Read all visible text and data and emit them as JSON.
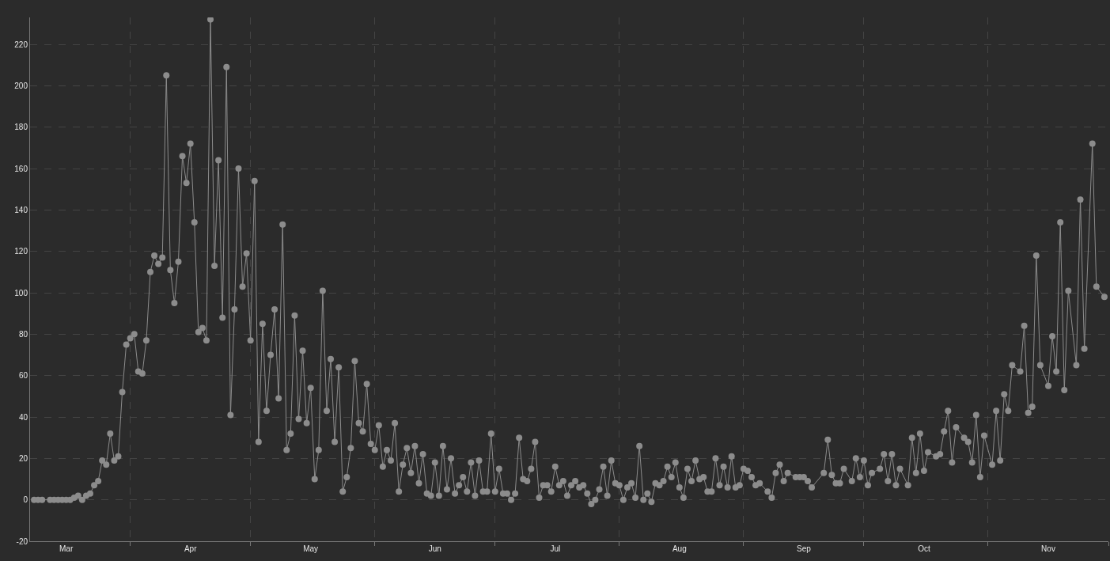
{
  "chart_data": {
    "type": "line",
    "x": [
      "--03-08",
      "--03-09",
      "--03-10",
      "--03-12",
      "--03-13",
      "--03-14",
      "--03-15",
      "--03-16",
      "--03-17",
      "--03-18",
      "--03-19",
      "--03-20",
      "--03-21",
      "--03-22",
      "--03-23",
      "--03-24",
      "--03-25",
      "--03-26",
      "--03-27",
      "--03-28",
      "--03-29",
      "--03-30",
      "--03-31",
      "--04-01",
      "--04-02",
      "--04-03",
      "--04-04",
      "--04-05",
      "--04-06",
      "--04-07",
      "--04-08",
      "--04-09",
      "--04-10",
      "--04-11",
      "--04-12",
      "--04-13",
      "--04-14",
      "--04-15",
      "--04-16",
      "--04-17",
      "--04-18",
      "--04-19",
      "--04-20",
      "--04-21",
      "--04-22",
      "--04-23",
      "--04-24",
      "--04-25",
      "--04-26",
      "--04-27",
      "--04-28",
      "--04-29",
      "--04-30",
      "--05-01",
      "--05-02",
      "--05-03",
      "--05-04",
      "--05-05",
      "--05-06",
      "--05-07",
      "--05-08",
      "--05-09",
      "--05-10",
      "--05-11",
      "--05-12",
      "--05-13",
      "--05-14",
      "--05-15",
      "--05-16",
      "--05-17",
      "--05-18",
      "--05-19",
      "--05-20",
      "--05-21",
      "--05-22",
      "--05-23",
      "--05-24",
      "--05-25",
      "--05-26",
      "--05-27",
      "--05-28",
      "--05-29",
      "--05-30",
      "--05-31",
      "--06-01",
      "--06-02",
      "--06-03",
      "--06-04",
      "--06-05",
      "--06-06",
      "--06-07",
      "--06-08",
      "--06-09",
      "--06-10",
      "--06-11",
      "--06-12",
      "--06-13",
      "--06-14",
      "--06-15",
      "--06-16",
      "--06-17",
      "--06-18",
      "--06-19",
      "--06-20",
      "--06-21",
      "--06-22",
      "--06-23",
      "--06-24",
      "--06-25",
      "--06-26",
      "--06-27",
      "--06-28",
      "--06-29",
      "--06-30",
      "--07-01",
      "--07-02",
      "--07-03",
      "--07-04",
      "--07-05",
      "--07-06",
      "--07-07",
      "--07-08",
      "--07-09",
      "--07-10",
      "--07-11",
      "--07-12",
      "--07-13",
      "--07-14",
      "--07-15",
      "--07-16",
      "--07-17",
      "--07-18",
      "--07-19",
      "--07-20",
      "--07-21",
      "--07-22",
      "--07-23",
      "--07-24",
      "--07-25",
      "--07-26",
      "--07-27",
      "--07-28",
      "--07-29",
      "--07-30",
      "--07-31",
      "--08-01",
      "--08-02",
      "--08-03",
      "--08-04",
      "--08-05",
      "--08-06",
      "--08-07",
      "--08-08",
      "--08-09",
      "--08-10",
      "--08-11",
      "--08-12",
      "--08-13",
      "--08-14",
      "--08-15",
      "--08-16",
      "--08-17",
      "--08-18",
      "--08-19",
      "--08-20",
      "--08-21",
      "--08-22",
      "--08-23",
      "--08-24",
      "--08-25",
      "--08-26",
      "--08-27",
      "--08-28",
      "--08-29",
      "--08-30",
      "--08-31",
      "--09-01",
      "--09-02",
      "--09-03",
      "--09-04",
      "--09-05",
      "--09-07",
      "--09-08",
      "--09-09",
      "--09-10",
      "--09-11",
      "--09-12",
      "--09-14",
      "--09-15",
      "--09-16",
      "--09-17",
      "--09-18",
      "--09-21",
      "--09-22",
      "--09-23",
      "--09-24",
      "--09-25",
      "--09-26",
      "--09-28",
      "--09-29",
      "--09-30",
      "--10-01",
      "--10-02",
      "--10-03",
      "--10-05",
      "--10-06",
      "--10-07",
      "--10-08",
      "--10-09",
      "--10-10",
      "--10-12",
      "--10-13",
      "--10-14",
      "--10-15",
      "--10-16",
      "--10-17",
      "--10-19",
      "--10-20",
      "--10-21",
      "--10-22",
      "--10-23",
      "--10-24",
      "--10-26",
      "--10-27",
      "--10-28",
      "--10-29",
      "--10-30",
      "--10-31",
      "--11-02",
      "--11-03",
      "--11-04",
      "--11-05",
      "--11-06",
      "--11-07",
      "--11-09",
      "--11-10",
      "--11-11",
      "--11-12",
      "--11-13",
      "--11-14",
      "--11-16",
      "--11-17",
      "--11-18",
      "--11-19",
      "--11-20",
      "--11-21",
      "--11-23",
      "--11-24",
      "--11-25",
      "--11-27",
      "--11-28",
      "--11-30"
    ],
    "series": [
      {
        "color": "#8c8c8c",
        "values": [
          0,
          0,
          0,
          0,
          0,
          0,
          0,
          0,
          0,
          1,
          2,
          0,
          2,
          3,
          7,
          9,
          19,
          17,
          32,
          19,
          21,
          52,
          75,
          78,
          80,
          62,
          61,
          77,
          110,
          118,
          114,
          117,
          205,
          111,
          95,
          115,
          166,
          153,
          172,
          134,
          81,
          83,
          77,
          232,
          113,
          164,
          88,
          209,
          41,
          92,
          160,
          103,
          119,
          77,
          154,
          28,
          85,
          43,
          70,
          92,
          49,
          133,
          24,
          32,
          89,
          39,
          72,
          37,
          54,
          10,
          24,
          101,
          43,
          68,
          28,
          64,
          4,
          11,
          25,
          67,
          37,
          33,
          56,
          27,
          24,
          36,
          16,
          24,
          19,
          37,
          4,
          17,
          25,
          13,
          26,
          8,
          22,
          3,
          2,
          18,
          2,
          26,
          5,
          20,
          3,
          7,
          11,
          4,
          18,
          2,
          19,
          4,
          4,
          32,
          4,
          15,
          3,
          3,
          0,
          3,
          30,
          10,
          9,
          15,
          28,
          1,
          7,
          7,
          4,
          16,
          7,
          9,
          2,
          7,
          9,
          6,
          7,
          3,
          -2,
          0,
          5,
          16,
          2,
          19,
          8,
          7,
          0,
          6,
          8,
          1,
          26,
          0,
          3,
          -1,
          8,
          7,
          9,
          16,
          11,
          18,
          6,
          1,
          15,
          9,
          19,
          10,
          11,
          4,
          4,
          20,
          7,
          16,
          6,
          21,
          6,
          7,
          15,
          14,
          11,
          7,
          8,
          4,
          1,
          13,
          17,
          9,
          13,
          11,
          11,
          11,
          9,
          6,
          13,
          29,
          12,
          8,
          8,
          15,
          9,
          20,
          11,
          19,
          7,
          13,
          15,
          22,
          9,
          22,
          7,
          15,
          7,
          30,
          13,
          32,
          14,
          23,
          21,
          22,
          33,
          43,
          18,
          35,
          30,
          28,
          18,
          41,
          11,
          31,
          17,
          43,
          19,
          51,
          43,
          65,
          62,
          84,
          42,
          45,
          118,
          65,
          55,
          79,
          62,
          134,
          53,
          101,
          65,
          145,
          73,
          172,
          103,
          98
        ]
      }
    ],
    "xlim": [
      "--03-07",
      "--12-01"
    ],
    "xticks": [
      {
        "value": "--03-16",
        "label": "Mar"
      },
      {
        "value": "--04-01",
        "label": null
      },
      {
        "value": "--04-16",
        "label": "Apr"
      },
      {
        "value": "--05-01",
        "label": null
      },
      {
        "value": "--05-16",
        "label": "May"
      },
      {
        "value": "--06-01",
        "label": null
      },
      {
        "value": "--06-16",
        "label": "Jun"
      },
      {
        "value": "--07-01",
        "label": null
      },
      {
        "value": "--07-16",
        "label": "Jul"
      },
      {
        "value": "--08-01",
        "label": null
      },
      {
        "value": "--08-16",
        "label": "Aug"
      },
      {
        "value": "--09-01",
        "label": null
      },
      {
        "value": "--09-16",
        "label": "Sep"
      },
      {
        "value": "--10-01",
        "label": null
      },
      {
        "value": "--10-16",
        "label": "Oct"
      },
      {
        "value": "--11-01",
        "label": null
      },
      {
        "value": "--11-16",
        "label": "Nov"
      },
      {
        "value": "--12-01",
        "label": null
      }
    ],
    "ylim": [
      -20,
      233
    ],
    "yticks": [
      -20,
      0,
      20,
      40,
      60,
      80,
      100,
      120,
      140,
      160,
      180,
      200,
      220
    ],
    "grid": true,
    "marker": "circle",
    "line_style": "solid"
  }
}
